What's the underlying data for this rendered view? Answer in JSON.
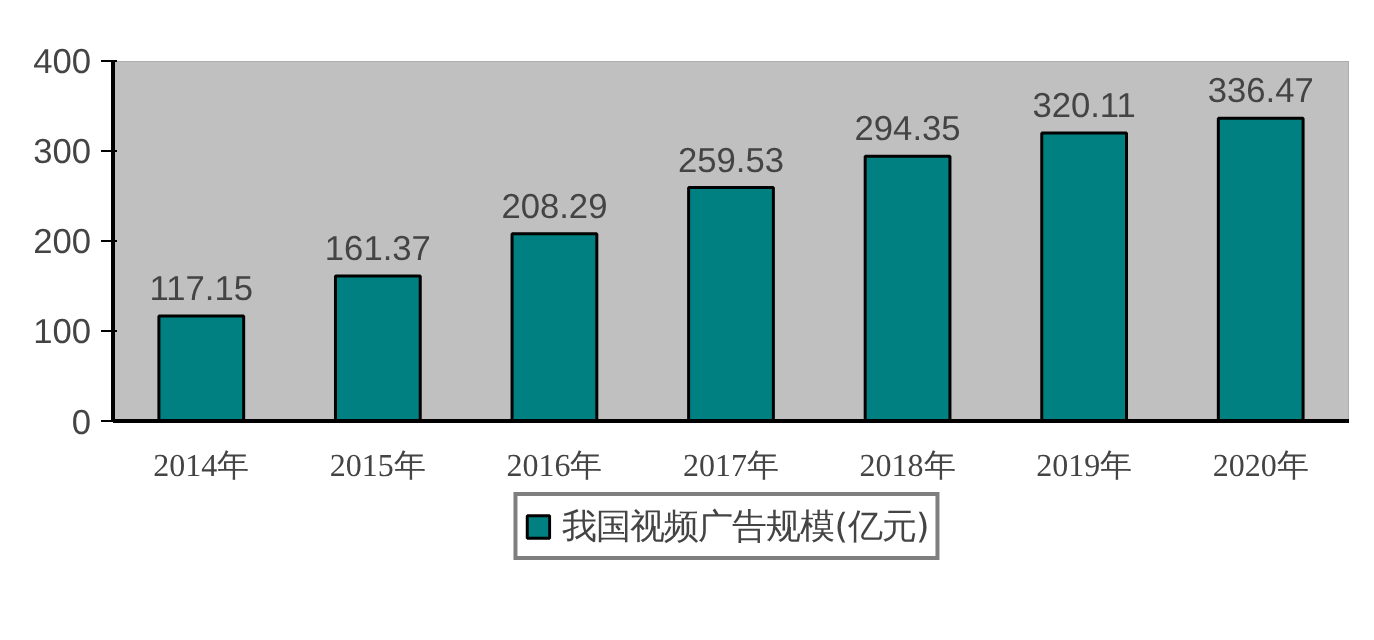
{
  "chart_data": {
    "type": "bar",
    "categories": [
      "2014年",
      "2015年",
      "2016年",
      "2017年",
      "2018年",
      "2019年",
      "2020年"
    ],
    "series": [
      {
        "name": "我国视频广告规模(亿元)",
        "color": "#008080",
        "values": [
          117.15,
          161.37,
          208.29,
          259.53,
          294.35,
          320.11,
          336.47
        ]
      }
    ],
    "ylim": [
      0,
      400
    ],
    "yticks": [
      0,
      100,
      200,
      300,
      400
    ],
    "data_labels": true,
    "grid": false,
    "legend": "bottom"
  }
}
